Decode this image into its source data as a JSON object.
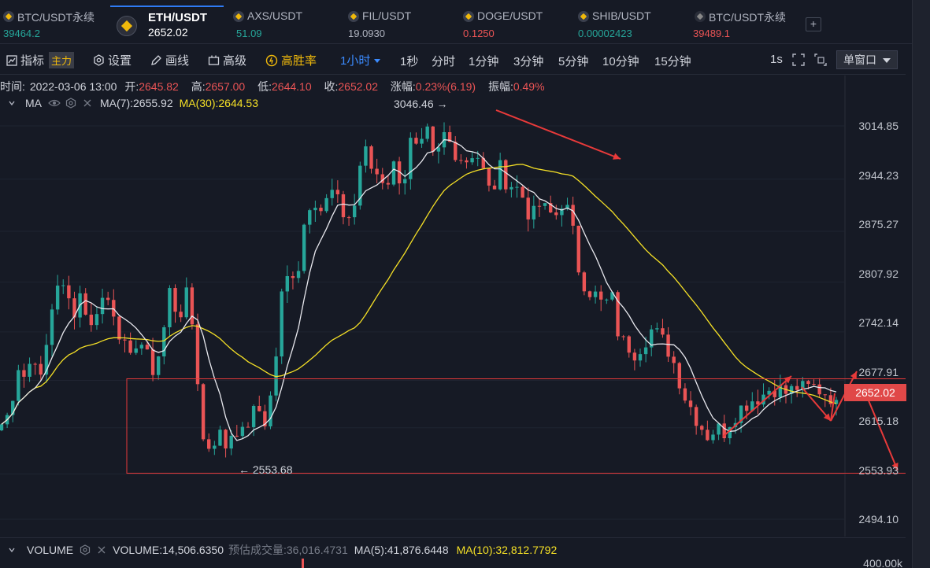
{
  "tickers": [
    {
      "name": "BTC/USDT永续",
      "price": "39464.2",
      "price_color": "#26a69a"
    },
    {
      "name": "ETH/USDT",
      "price": "2652.02",
      "price_color": "#ffffff",
      "active": true
    },
    {
      "name": "AXS/USDT",
      "price": "51.09",
      "price_color": "#26a69a"
    },
    {
      "name": "FIL/USDT",
      "price": "19.0930",
      "price_color": "#b0b4c0"
    },
    {
      "name": "DOGE/USDT",
      "price": "0.1250",
      "price_color": "#ea5455"
    },
    {
      "name": "SHIB/USDT",
      "price": "0.00002423",
      "price_color": "#26a69a"
    },
    {
      "name": "BTC/USDT永续",
      "price": "39489.1",
      "price_color": "#ea5455"
    }
  ],
  "toolbar": {
    "indicator": "指标",
    "main": "主力",
    "settings": "设置",
    "draw": "画线",
    "advanced": "高级",
    "win_rate": "高胜率",
    "interval_selected": "1小时",
    "intervals": [
      "1秒",
      "分时",
      "1分钟",
      "3分钟",
      "5分钟",
      "10分钟",
      "15分钟"
    ],
    "refresh_rate": "1s",
    "window_mode": "单窗口"
  },
  "info": {
    "time_label": "时间:",
    "time": "2022-03-06 13:00",
    "open_label": "开:",
    "open": "2645.82",
    "high_label": "高:",
    "high": "2657.00",
    "low_label": "低:",
    "low": "2644.10",
    "close_label": "收:",
    "close": "2652.02",
    "change_label": "涨幅:",
    "change": "0.23%(6.19)",
    "amplitude_label": "振幅:",
    "amplitude": "0.49%"
  },
  "ma_row": {
    "name": "MA",
    "ma7": "MA(7):2655.92",
    "ma30": "MA(30):2644.53"
  },
  "price_axis": [
    "3014.85",
    "2944.23",
    "2875.27",
    "2807.92",
    "2742.14",
    "2677.91",
    "2615.18",
    "2553.93",
    "2494.10"
  ],
  "current_price": "2652.02",
  "annotations": {
    "high": "3046.46 →",
    "low": "← 2553.68"
  },
  "volume": {
    "name": "VOLUME",
    "value": "VOLUME:14,506.6350",
    "estimated": "预估成交量:36,016.4731",
    "ma5": "MA(5):41,876.6448",
    "ma10": "MA(10):32,812.7792",
    "axis": "400.00k"
  },
  "colors": {
    "up": "#26a69a",
    "down": "#ea5455",
    "ma7": "#e8e8ee",
    "ma30": "#f5e026",
    "accent": "#2f7bf5",
    "annotation": "#e83a3a"
  },
  "chart_data": {
    "type": "candlestick",
    "symbol": "ETH/USDT",
    "interval": "1小时",
    "ylim": [
      2470,
      3080
    ],
    "y_ticks": [
      3014.85,
      2944.23,
      2875.27,
      2807.92,
      2742.14,
      2677.91,
      2615.18,
      2553.93,
      2494.1
    ],
    "close_path": [
      2620,
      2635,
      2700,
      2680,
      2720,
      2670,
      2760,
      2810,
      2790,
      2770,
      2800,
      2740,
      2780,
      2790,
      2770,
      2730,
      2700,
      2740,
      2710,
      2690,
      2730,
      2800,
      2760,
      2790,
      2740,
      2600,
      2590,
      2610,
      2590,
      2620,
      2605,
      2630,
      2640,
      2620,
      2690,
      2800,
      2820,
      2830,
      2910,
      2920,
      2900,
      2930,
      2910,
      2890,
      2910,
      2990,
      2960,
      2950,
      2940,
      2965,
      2935,
      2995,
      2975,
      3005,
      2960,
      3005,
      2990,
      2975,
      2970,
      2985,
      2955,
      2920,
      2960,
      2940,
      2935,
      2920,
      2890,
      2910,
      2900,
      2895,
      2920,
      2885,
      2820,
      2800,
      2790,
      2775,
      2790,
      2730,
      2725,
      2715,
      2730,
      2745,
      2735,
      2720,
      2695,
      2660,
      2640,
      2620,
      2605,
      2615,
      2610,
      2630,
      2640,
      2650,
      2655,
      2660,
      2670,
      2665,
      2660,
      2670,
      2665,
      2670,
      2665,
      2660,
      2652
    ],
    "ma7_label": "MA(7)",
    "ma30_label": "MA(30)",
    "box": {
      "y_top": 2680,
      "y_bottom": 2555
    }
  }
}
